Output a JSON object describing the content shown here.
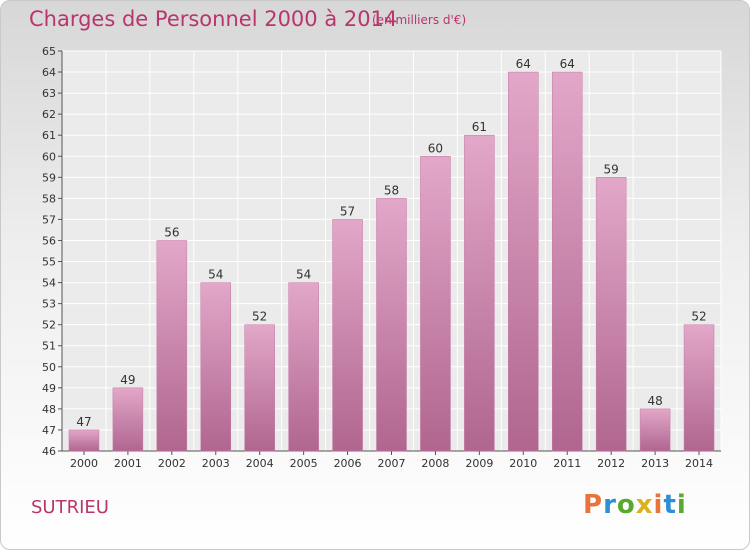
{
  "header": {
    "title": "Charges de Personnel 2000 à 2014",
    "subtitle": "(en milliers d'€)"
  },
  "footer": {
    "commune": "SUTRIEU",
    "logo": "Proxiti",
    "logo_colors": [
      "#e8743b",
      "#2e8fd4",
      "#5aa82e",
      "#d9b21c",
      "#e8743b",
      "#2e8fd4",
      "#5aa82e"
    ]
  },
  "chart_data": {
    "type": "bar",
    "title": "Charges de Personnel 2000 à 2014",
    "subtitle": "(en milliers d'€)",
    "categories": [
      "2000",
      "2001",
      "2002",
      "2003",
      "2004",
      "2005",
      "2006",
      "2007",
      "2008",
      "2009",
      "2010",
      "2011",
      "2012",
      "2013",
      "2014"
    ],
    "values": [
      47,
      49,
      56,
      54,
      52,
      54,
      57,
      58,
      60,
      61,
      64,
      64,
      59,
      48,
      52
    ],
    "ylim": [
      46,
      65
    ],
    "yticks": [
      46,
      47,
      48,
      49,
      50,
      51,
      52,
      53,
      54,
      55,
      56,
      57,
      58,
      59,
      60,
      61,
      62,
      63,
      64,
      65
    ],
    "grid": true,
    "bar_color": "#d48ab4"
  }
}
